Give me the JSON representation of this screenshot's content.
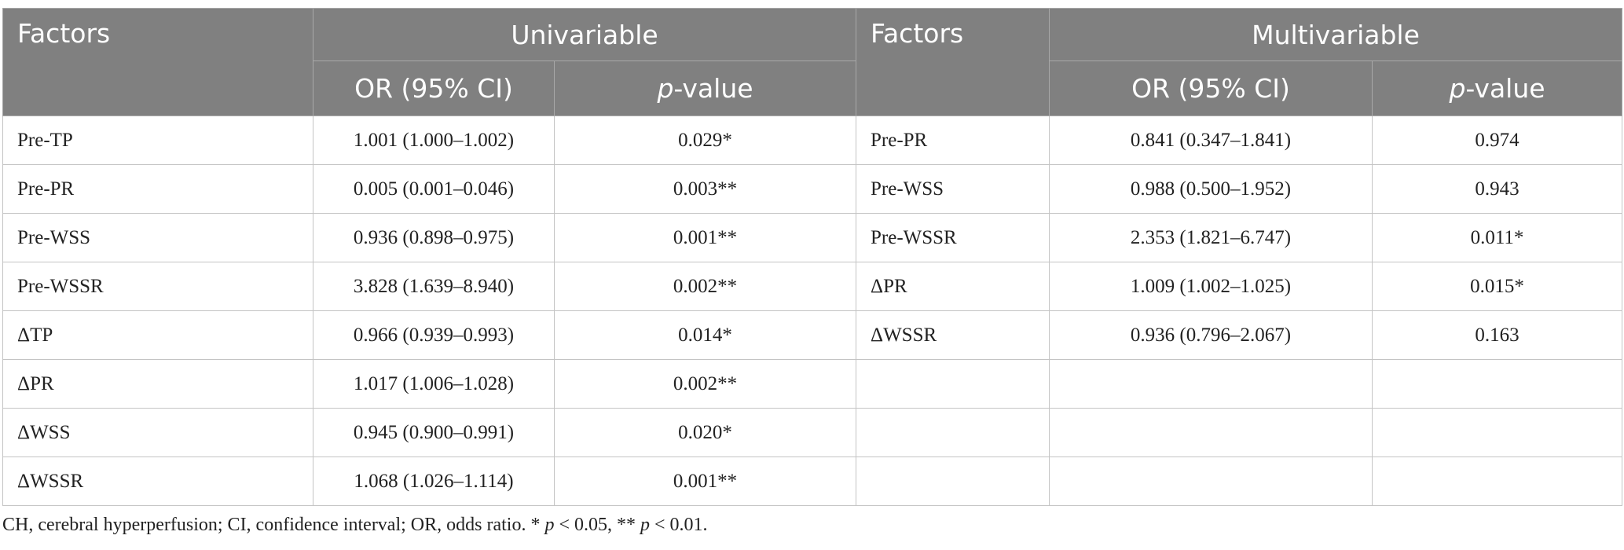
{
  "table": {
    "group_headers": {
      "left_factors": "Factors",
      "univariable": "Univariable",
      "right_factors": "Factors",
      "multivariable": "Multivariable"
    },
    "sub_headers": {
      "or": "OR (95% CI)",
      "p_italic": "p",
      "p_rest": "-value"
    },
    "univariable_rows": [
      [
        "Pre-TP",
        "1.001 (1.000–1.002)",
        "0.029*"
      ],
      [
        "Pre-PR",
        "0.005 (0.001–0.046)",
        "0.003**"
      ],
      [
        "Pre-WSS",
        "0.936 (0.898–0.975)",
        "0.001**"
      ],
      [
        "Pre-WSSR",
        "3.828 (1.639–8.940)",
        "0.002**"
      ],
      [
        "ΔTP",
        "0.966 (0.939–0.993)",
        "0.014*"
      ],
      [
        "ΔPR",
        "1.017 (1.006–1.028)",
        "0.002**"
      ],
      [
        "ΔWSS",
        "0.945 (0.900–0.991)",
        "0.020*"
      ],
      [
        "ΔWSSR",
        "1.068 (1.026–1.114)",
        "0.001**"
      ]
    ],
    "multivariable_rows": [
      [
        "Pre-PR",
        "0.841 (0.347–1.841)",
        "0.974"
      ],
      [
        "Pre-WSS",
        "0.988 (0.500–1.952)",
        "0.943"
      ],
      [
        "Pre-WSSR",
        "2.353 (1.821–6.747)",
        "0.011*"
      ],
      [
        "ΔPR",
        "1.009 (1.002–1.025)",
        "0.015*"
      ],
      [
        "ΔWSSR",
        "0.936 (0.796–2.067)",
        "0.163"
      ]
    ]
  },
  "footnote": [
    {
      "text": "CH, cerebral hyperperfusion; CI, confidence interval; OR, odds ratio. * "
    },
    {
      "text": "p",
      "italic": true
    },
    {
      "text": " < 0.05, ** "
    },
    {
      "text": "p",
      "italic": true
    },
    {
      "text": " < 0.01."
    }
  ]
}
